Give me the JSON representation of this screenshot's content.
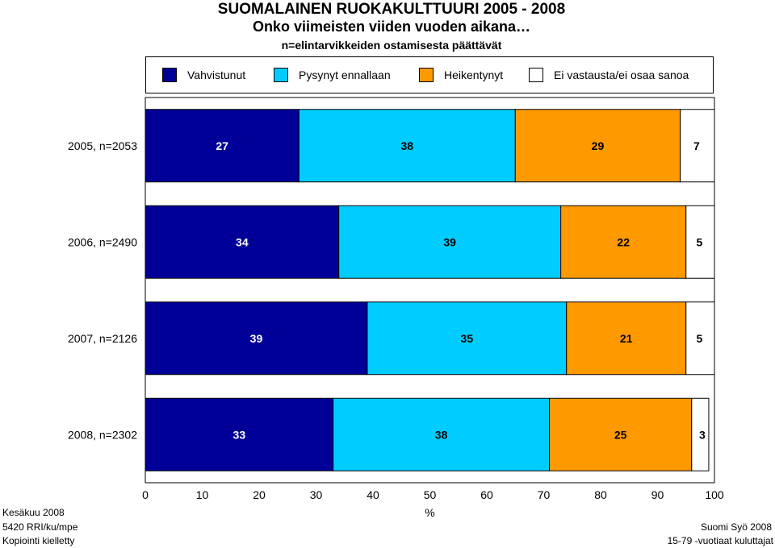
{
  "header": {
    "title": "SUOMALAINEN RUOKAKULTTUURI 2005 - 2008",
    "subtitle": "Onko viimeisten viiden vuoden aikana…",
    "note": "n=elintarvikkeiden ostamisesta päättävät"
  },
  "chart_data": {
    "type": "bar",
    "orientation": "horizontal",
    "stacked": true,
    "categories": [
      "2005, n=2053",
      "2006, n=2490",
      "2007, n=2126",
      "2008, n=2302"
    ],
    "series": [
      {
        "name": "Vahvistunut",
        "color": "#000099",
        "values": [
          27,
          34,
          39,
          33
        ]
      },
      {
        "name": "Pysynyt ennallaan",
        "color": "#00CCFF",
        "values": [
          38,
          39,
          35,
          38
        ]
      },
      {
        "name": "Heikentynyt",
        "color": "#FF9900",
        "values": [
          29,
          22,
          21,
          25
        ]
      },
      {
        "name": "Ei vastausta/ei osaa sanoa",
        "color": "#FFFFFF",
        "values": [
          7,
          5,
          5,
          3
        ]
      }
    ],
    "xlabel": "%",
    "xlim": [
      0,
      100
    ],
    "xticks": [
      0,
      10,
      20,
      30,
      40,
      50,
      60,
      70,
      80,
      90,
      100
    ],
    "legend_position": "top",
    "grid": false
  },
  "footer": {
    "left": [
      "Kesäkuu 2008",
      "5420 RRI/ku/mpe",
      "Kopiointi kielletty"
    ],
    "right": [
      "Suomi Syö 2008",
      "15-79 -vuotiaat kuluttajat"
    ]
  }
}
